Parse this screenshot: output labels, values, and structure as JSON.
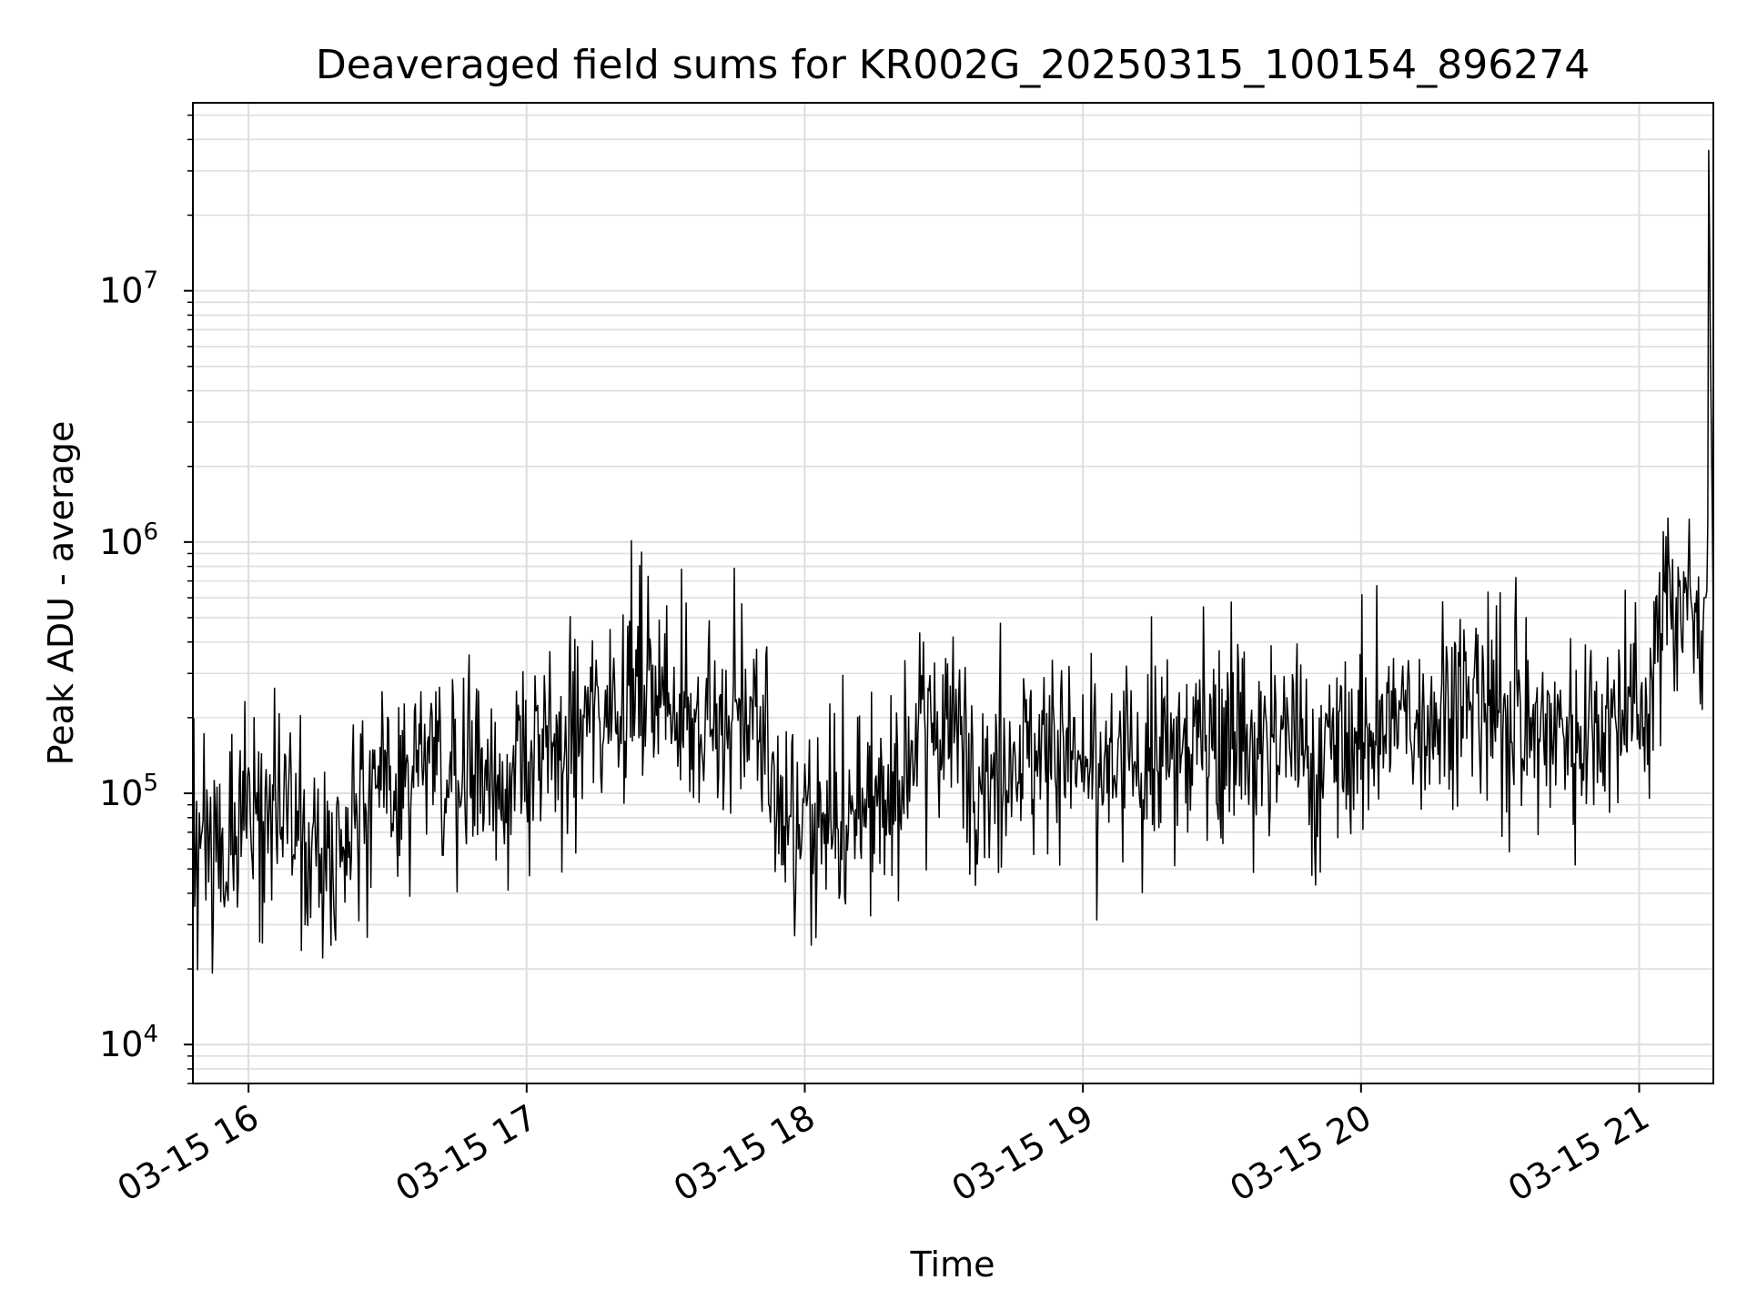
{
  "chart_data": {
    "type": "line",
    "title": "Deaveraged field sums for KR002G_20250315_100154_896274",
    "xlabel": "Time",
    "ylabel": "Peak ADU - average",
    "x_ticks": [
      "03-15 16",
      "03-15 17",
      "03-15 18",
      "03-15 19",
      "03-15 20",
      "03-15 21"
    ],
    "y_ticks": [
      {
        "base": "10",
        "exp": "4",
        "value": 10000
      },
      {
        "base": "10",
        "exp": "5",
        "value": 100000
      },
      {
        "base": "10",
        "exp": "6",
        "value": 1000000
      },
      {
        "base": "10",
        "exp": "7",
        "value": 10000000
      }
    ],
    "xlim": [
      "2025-03-15 15:48",
      "2025-03-15 21:16"
    ],
    "ylim": [
      7000,
      56000000
    ],
    "yscale": "log",
    "grid": "major and minor",
    "line_color": "#000000",
    "series": [
      {
        "x": [
          "2025-03-15 15:48",
          "2025-03-15 15:55",
          "2025-03-15 16:03",
          "2025-03-15 16:10",
          "2025-03-15 16:18",
          "2025-03-15 16:25",
          "2025-03-15 16:33",
          "2025-03-15 16:40",
          "2025-03-15 16:48",
          "2025-03-15 16:55",
          "2025-03-15 17:03",
          "2025-03-15 17:10",
          "2025-03-15 17:18",
          "2025-03-15 17:25",
          "2025-03-15 17:33",
          "2025-03-15 17:40",
          "2025-03-15 17:47",
          "2025-03-15 17:54",
          "2025-03-15 18:02",
          "2025-03-15 18:09",
          "2025-03-15 18:17",
          "2025-03-15 18:24",
          "2025-03-15 18:32",
          "2025-03-15 18:39",
          "2025-03-15 18:47",
          "2025-03-15 18:54",
          "2025-03-15 19:02",
          "2025-03-15 19:09",
          "2025-03-15 19:17",
          "2025-03-15 19:24",
          "2025-03-15 19:32",
          "2025-03-15 19:39",
          "2025-03-15 19:47",
          "2025-03-15 19:54",
          "2025-03-15 20:02",
          "2025-03-15 20:09",
          "2025-03-15 20:17",
          "2025-03-15 20:24",
          "2025-03-15 20:32",
          "2025-03-15 20:39",
          "2025-03-15 20:47",
          "2025-03-15 20:54",
          "2025-03-15 20:59",
          "2025-03-15 21:02",
          "2025-03-15 21:06",
          "2025-03-15 21:10",
          "2025-03-15 21:13",
          "2025-03-15 21:14",
          "2025-03-15 21:15",
          "2025-03-15 21:16"
        ],
        "y": [
          70000,
          60000,
          90000,
          75000,
          60000,
          100000,
          110000,
          120000,
          130000,
          110000,
          140000,
          170000,
          240000,
          280000,
          220000,
          160000,
          230000,
          95000,
          70000,
          75000,
          80000,
          180000,
          180000,
          120000,
          150000,
          150000,
          120000,
          130000,
          140000,
          160000,
          180000,
          170000,
          160000,
          150000,
          170000,
          200000,
          220000,
          250000,
          200000,
          180000,
          190000,
          200000,
          210000,
          220000,
          700000,
          550000,
          500000,
          600000,
          35000000,
          450000
        ]
      }
    ]
  }
}
